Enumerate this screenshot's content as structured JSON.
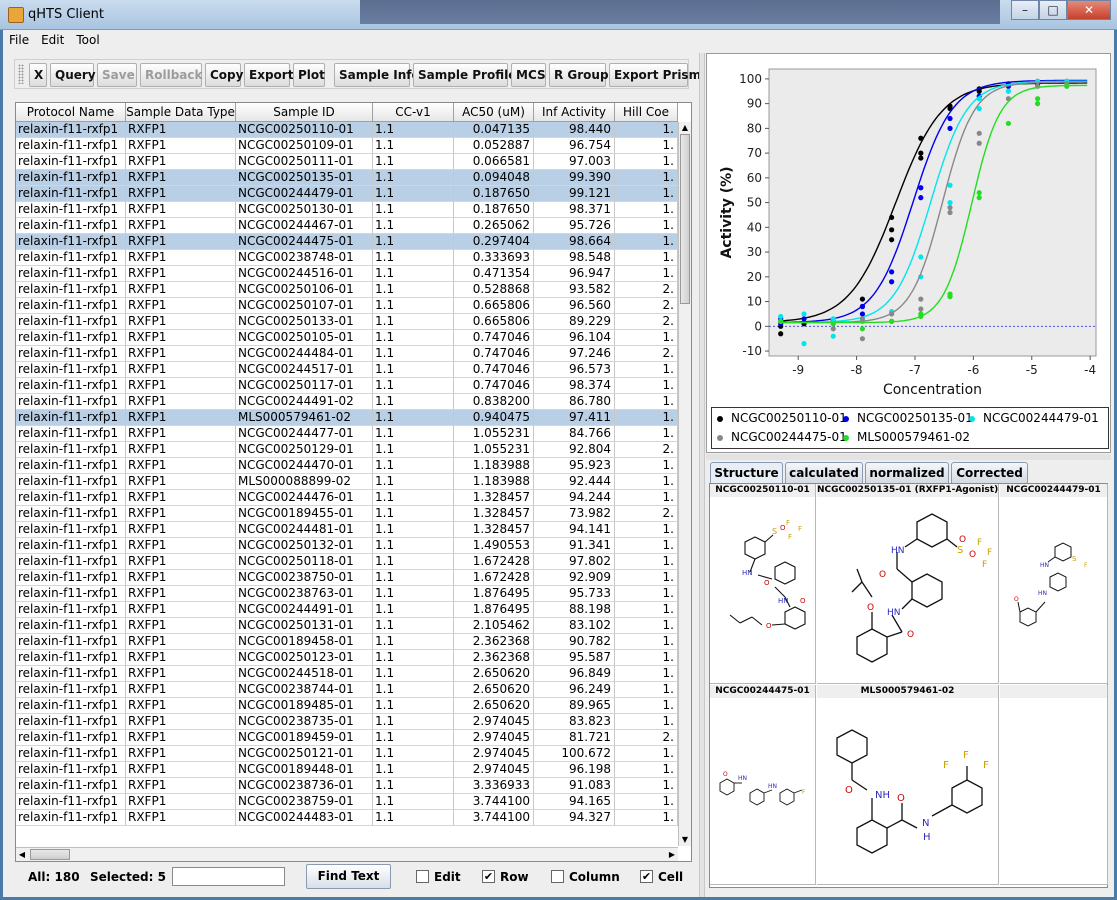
{
  "window": {
    "title": "qHTS Client"
  },
  "menu": [
    "File",
    "Edit",
    "Tool"
  ],
  "toolbar": {
    "buttons": [
      {
        "label": "X",
        "enabled": true
      },
      {
        "label": "Query",
        "enabled": true
      },
      {
        "label": "Save",
        "enabled": false
      },
      {
        "label": "Rollback",
        "enabled": false
      },
      {
        "label": "Copy",
        "enabled": true
      },
      {
        "label": "Export",
        "enabled": true
      },
      {
        "label": "Plot",
        "enabled": true
      },
      {
        "label": "Sample Info",
        "enabled": true
      },
      {
        "label": "Sample Profile",
        "enabled": true
      },
      {
        "label": "MCS",
        "enabled": true
      },
      {
        "label": "R Group",
        "enabled": true
      },
      {
        "label": "Export Prism",
        "enabled": true
      }
    ]
  },
  "table": {
    "columns": [
      "Protocol Name",
      "Sample Data Type",
      "Sample ID",
      "CC-v1",
      "AC50 (uM)",
      "Inf Activity",
      "Hill Coe"
    ],
    "rows": [
      {
        "protocol": "relaxin-f11-rxfp1",
        "type": "RXFP1",
        "id": "NCGC00250110-01",
        "cc": "1.1",
        "ac50": "0.047135",
        "inf": "98.440",
        "hill": "1.",
        "sel": true
      },
      {
        "protocol": "relaxin-f11-rxfp1",
        "type": "RXFP1",
        "id": "NCGC00250109-01",
        "cc": "1.1",
        "ac50": "0.052887",
        "inf": "96.754",
        "hill": "1.",
        "sel": false
      },
      {
        "protocol": "relaxin-f11-rxfp1",
        "type": "RXFP1",
        "id": "NCGC00250111-01",
        "cc": "1.1",
        "ac50": "0.066581",
        "inf": "97.003",
        "hill": "1.",
        "sel": false
      },
      {
        "protocol": "relaxin-f11-rxfp1",
        "type": "RXFP1",
        "id": "NCGC00250135-01",
        "cc": "1.1",
        "ac50": "0.094048",
        "inf": "99.390",
        "hill": "1.",
        "sel": true
      },
      {
        "protocol": "relaxin-f11-rxfp1",
        "type": "RXFP1",
        "id": "NCGC00244479-01",
        "cc": "1.1",
        "ac50": "0.187650",
        "inf": "99.121",
        "hill": "1.",
        "sel": true
      },
      {
        "protocol": "relaxin-f11-rxfp1",
        "type": "RXFP1",
        "id": "NCGC00250130-01",
        "cc": "1.1",
        "ac50": "0.187650",
        "inf": "98.371",
        "hill": "1.",
        "sel": false
      },
      {
        "protocol": "relaxin-f11-rxfp1",
        "type": "RXFP1",
        "id": "NCGC00244467-01",
        "cc": "1.1",
        "ac50": "0.265062",
        "inf": "95.726",
        "hill": "1.",
        "sel": false
      },
      {
        "protocol": "relaxin-f11-rxfp1",
        "type": "RXFP1",
        "id": "NCGC00244475-01",
        "cc": "1.1",
        "ac50": "0.297404",
        "inf": "98.664",
        "hill": "1.",
        "sel": true
      },
      {
        "protocol": "relaxin-f11-rxfp1",
        "type": "RXFP1",
        "id": "NCGC00238748-01",
        "cc": "1.1",
        "ac50": "0.333693",
        "inf": "98.548",
        "hill": "1.",
        "sel": false
      },
      {
        "protocol": "relaxin-f11-rxfp1",
        "type": "RXFP1",
        "id": "NCGC00244516-01",
        "cc": "1.1",
        "ac50": "0.471354",
        "inf": "96.947",
        "hill": "1.",
        "sel": false
      },
      {
        "protocol": "relaxin-f11-rxfp1",
        "type": "RXFP1",
        "id": "NCGC00250106-01",
        "cc": "1.1",
        "ac50": "0.528868",
        "inf": "93.582",
        "hill": "2.",
        "sel": false
      },
      {
        "protocol": "relaxin-f11-rxfp1",
        "type": "RXFP1",
        "id": "NCGC00250107-01",
        "cc": "1.1",
        "ac50": "0.665806",
        "inf": "96.560",
        "hill": "2.",
        "sel": false
      },
      {
        "protocol": "relaxin-f11-rxfp1",
        "type": "RXFP1",
        "id": "NCGC00250133-01",
        "cc": "1.1",
        "ac50": "0.665806",
        "inf": "89.229",
        "hill": "2.",
        "sel": false
      },
      {
        "protocol": "relaxin-f11-rxfp1",
        "type": "RXFP1",
        "id": "NCGC00250105-01",
        "cc": "1.1",
        "ac50": "0.747046",
        "inf": "96.104",
        "hill": "1.",
        "sel": false
      },
      {
        "protocol": "relaxin-f11-rxfp1",
        "type": "RXFP1",
        "id": "NCGC00244484-01",
        "cc": "1.1",
        "ac50": "0.747046",
        "inf": "97.246",
        "hill": "2.",
        "sel": false
      },
      {
        "protocol": "relaxin-f11-rxfp1",
        "type": "RXFP1",
        "id": "NCGC00244517-01",
        "cc": "1.1",
        "ac50": "0.747046",
        "inf": "96.573",
        "hill": "1.",
        "sel": false
      },
      {
        "protocol": "relaxin-f11-rxfp1",
        "type": "RXFP1",
        "id": "NCGC00250117-01",
        "cc": "1.1",
        "ac50": "0.747046",
        "inf": "98.374",
        "hill": "1.",
        "sel": false
      },
      {
        "protocol": "relaxin-f11-rxfp1",
        "type": "RXFP1",
        "id": "NCGC00244491-02",
        "cc": "1.1",
        "ac50": "0.838200",
        "inf": "86.780",
        "hill": "1.",
        "sel": false
      },
      {
        "protocol": "relaxin-f11-rxfp1",
        "type": "RXFP1",
        "id": "MLS000579461-02",
        "cc": "1.1",
        "ac50": "0.940475",
        "inf": "97.411",
        "hill": "1.",
        "sel": true
      },
      {
        "protocol": "relaxin-f11-rxfp1",
        "type": "RXFP1",
        "id": "NCGC00244477-01",
        "cc": "1.1",
        "ac50": "1.055231",
        "inf": "84.766",
        "hill": "1.",
        "sel": false
      },
      {
        "protocol": "relaxin-f11-rxfp1",
        "type": "RXFP1",
        "id": "NCGC00250129-01",
        "cc": "1.1",
        "ac50": "1.055231",
        "inf": "92.804",
        "hill": "2.",
        "sel": false
      },
      {
        "protocol": "relaxin-f11-rxfp1",
        "type": "RXFP1",
        "id": "NCGC00244470-01",
        "cc": "1.1",
        "ac50": "1.183988",
        "inf": "95.923",
        "hill": "1.",
        "sel": false
      },
      {
        "protocol": "relaxin-f11-rxfp1",
        "type": "RXFP1",
        "id": "MLS000088899-02",
        "cc": "1.1",
        "ac50": "1.183988",
        "inf": "92.444",
        "hill": "1.",
        "sel": false
      },
      {
        "protocol": "relaxin-f11-rxfp1",
        "type": "RXFP1",
        "id": "NCGC00244476-01",
        "cc": "1.1",
        "ac50": "1.328457",
        "inf": "94.244",
        "hill": "1.",
        "sel": false
      },
      {
        "protocol": "relaxin-f11-rxfp1",
        "type": "RXFP1",
        "id": "NCGC00189455-01",
        "cc": "1.1",
        "ac50": "1.328457",
        "inf": "73.982",
        "hill": "2.",
        "sel": false
      },
      {
        "protocol": "relaxin-f11-rxfp1",
        "type": "RXFP1",
        "id": "NCGC00244481-01",
        "cc": "1.1",
        "ac50": "1.328457",
        "inf": "94.141",
        "hill": "1.",
        "sel": false
      },
      {
        "protocol": "relaxin-f11-rxfp1",
        "type": "RXFP1",
        "id": "NCGC00250132-01",
        "cc": "1.1",
        "ac50": "1.490553",
        "inf": "91.341",
        "hill": "1.",
        "sel": false
      },
      {
        "protocol": "relaxin-f11-rxfp1",
        "type": "RXFP1",
        "id": "NCGC00250118-01",
        "cc": "1.1",
        "ac50": "1.672428",
        "inf": "97.802",
        "hill": "1.",
        "sel": false
      },
      {
        "protocol": "relaxin-f11-rxfp1",
        "type": "RXFP1",
        "id": "NCGC00238750-01",
        "cc": "1.1",
        "ac50": "1.672428",
        "inf": "92.909",
        "hill": "1.",
        "sel": false
      },
      {
        "protocol": "relaxin-f11-rxfp1",
        "type": "RXFP1",
        "id": "NCGC00238763-01",
        "cc": "1.1",
        "ac50": "1.876495",
        "inf": "95.733",
        "hill": "1.",
        "sel": false
      },
      {
        "protocol": "relaxin-f11-rxfp1",
        "type": "RXFP1",
        "id": "NCGC00244491-01",
        "cc": "1.1",
        "ac50": "1.876495",
        "inf": "88.198",
        "hill": "1.",
        "sel": false
      },
      {
        "protocol": "relaxin-f11-rxfp1",
        "type": "RXFP1",
        "id": "NCGC00250131-01",
        "cc": "1.1",
        "ac50": "2.105462",
        "inf": "83.102",
        "hill": "1.",
        "sel": false
      },
      {
        "protocol": "relaxin-f11-rxfp1",
        "type": "RXFP1",
        "id": "NCGC00189458-01",
        "cc": "1.1",
        "ac50": "2.362368",
        "inf": "90.782",
        "hill": "1.",
        "sel": false
      },
      {
        "protocol": "relaxin-f11-rxfp1",
        "type": "RXFP1",
        "id": "NCGC00250123-01",
        "cc": "1.1",
        "ac50": "2.362368",
        "inf": "95.587",
        "hill": "1.",
        "sel": false
      },
      {
        "protocol": "relaxin-f11-rxfp1",
        "type": "RXFP1",
        "id": "NCGC00244518-01",
        "cc": "1.1",
        "ac50": "2.650620",
        "inf": "96.849",
        "hill": "1.",
        "sel": false
      },
      {
        "protocol": "relaxin-f11-rxfp1",
        "type": "RXFP1",
        "id": "NCGC00238744-01",
        "cc": "1.1",
        "ac50": "2.650620",
        "inf": "96.249",
        "hill": "1.",
        "sel": false
      },
      {
        "protocol": "relaxin-f11-rxfp1",
        "type": "RXFP1",
        "id": "NCGC00189485-01",
        "cc": "1.1",
        "ac50": "2.650620",
        "inf": "89.965",
        "hill": "1.",
        "sel": false
      },
      {
        "protocol": "relaxin-f11-rxfp1",
        "type": "RXFP1",
        "id": "NCGC00238735-01",
        "cc": "1.1",
        "ac50": "2.974045",
        "inf": "83.823",
        "hill": "1.",
        "sel": false
      },
      {
        "protocol": "relaxin-f11-rxfp1",
        "type": "RXFP1",
        "id": "NCGC00189459-01",
        "cc": "1.1",
        "ac50": "2.974045",
        "inf": "81.721",
        "hill": "2.",
        "sel": false
      },
      {
        "protocol": "relaxin-f11-rxfp1",
        "type": "RXFP1",
        "id": "NCGC00250121-01",
        "cc": "1.1",
        "ac50": "2.974045",
        "inf": "100.672",
        "hill": "1.",
        "sel": false
      },
      {
        "protocol": "relaxin-f11-rxfp1",
        "type": "RXFP1",
        "id": "NCGC00189448-01",
        "cc": "1.1",
        "ac50": "2.974045",
        "inf": "96.198",
        "hill": "1.",
        "sel": false
      },
      {
        "protocol": "relaxin-f11-rxfp1",
        "type": "RXFP1",
        "id": "NCGC00238736-01",
        "cc": "1.1",
        "ac50": "3.336933",
        "inf": "91.083",
        "hill": "1.",
        "sel": false
      },
      {
        "protocol": "relaxin-f11-rxfp1",
        "type": "RXFP1",
        "id": "NCGC00238759-01",
        "cc": "1.1",
        "ac50": "3.744100",
        "inf": "94.165",
        "hill": "1.",
        "sel": false
      },
      {
        "protocol": "relaxin-f11-rxfp1",
        "type": "RXFP1",
        "id": "NCGC00244483-01",
        "cc": "1.1",
        "ac50": "3.744100",
        "inf": "94.327",
        "hill": "1.",
        "sel": false
      }
    ]
  },
  "status": {
    "all": "All: 180",
    "selected": "Selected: 5",
    "find_value": "",
    "find_button": "Find Text",
    "checks": [
      {
        "label": "Edit",
        "checked": false
      },
      {
        "label": "Row",
        "checked": true
      },
      {
        "label": "Column",
        "checked": false
      },
      {
        "label": "Cell",
        "checked": true
      }
    ]
  },
  "chart_data": {
    "type": "scatter",
    "xlabel": "Concentration",
    "ylabel": "Activity (%)",
    "xlim": [
      -9.5,
      -3.9
    ],
    "ylim": [
      -12,
      104
    ],
    "xticks": [
      -9,
      -8,
      -7,
      -6,
      -5,
      -4
    ],
    "yticks": [
      -10,
      0,
      10,
      20,
      30,
      40,
      50,
      60,
      70,
      80,
      90,
      100
    ],
    "series": [
      {
        "name": "NCGC00250110-01",
        "color": "#000000",
        "bottom": 1.5,
        "top": 98.4,
        "logac50": -7.33,
        "hill": 1.1,
        "points": [
          [
            -9.3,
            -3
          ],
          [
            -9.3,
            0
          ],
          [
            -8.9,
            1
          ],
          [
            -8.4,
            2
          ],
          [
            -7.9,
            8
          ],
          [
            -7.9,
            11
          ],
          [
            -7.4,
            35
          ],
          [
            -7.4,
            39
          ],
          [
            -7.4,
            44
          ],
          [
            -6.9,
            70
          ],
          [
            -6.9,
            68
          ],
          [
            -6.9,
            76
          ],
          [
            -6.4,
            88
          ],
          [
            -6.4,
            89
          ],
          [
            -5.9,
            95
          ],
          [
            -5.9,
            96
          ],
          [
            -5.4,
            98
          ],
          [
            -4.9,
            99
          ]
        ]
      },
      {
        "name": "NCGC00250135-01",
        "color": "#0000ee",
        "bottom": 1.5,
        "top": 99.4,
        "logac50": -7.03,
        "hill": 1.3,
        "points": [
          [
            -9.3,
            3
          ],
          [
            -9.3,
            1
          ],
          [
            -8.9,
            3
          ],
          [
            -8.4,
            2
          ],
          [
            -7.9,
            5
          ],
          [
            -7.9,
            8
          ],
          [
            -7.4,
            18
          ],
          [
            -7.4,
            22
          ],
          [
            -6.9,
            52
          ],
          [
            -6.9,
            56
          ],
          [
            -6.4,
            80
          ],
          [
            -6.4,
            84
          ],
          [
            -5.9,
            93
          ],
          [
            -5.4,
            97
          ],
          [
            -4.9,
            98
          ],
          [
            -4.4,
            99
          ]
        ]
      },
      {
        "name": "NCGC00244479-01",
        "color": "#00e5ee",
        "bottom": 1.5,
        "top": 99.1,
        "logac50": -6.73,
        "hill": 1.4,
        "points": [
          [
            -9.3,
            4
          ],
          [
            -8.9,
            5
          ],
          [
            -8.9,
            -7
          ],
          [
            -8.4,
            -4
          ],
          [
            -8.4,
            3
          ],
          [
            -7.9,
            2
          ],
          [
            -7.4,
            6
          ],
          [
            -6.9,
            20
          ],
          [
            -6.9,
            28
          ],
          [
            -6.4,
            50
          ],
          [
            -6.4,
            57
          ],
          [
            -5.9,
            88
          ],
          [
            -5.9,
            92
          ],
          [
            -5.4,
            95
          ],
          [
            -4.9,
            99
          ],
          [
            -4.4,
            99
          ]
        ]
      },
      {
        "name": "NCGC00244475-01",
        "color": "#888888",
        "bottom": 1.5,
        "top": 98.7,
        "logac50": -6.53,
        "hill": 1.6,
        "points": [
          [
            -9.3,
            2
          ],
          [
            -8.4,
            -1
          ],
          [
            -7.9,
            -5
          ],
          [
            -7.9,
            3
          ],
          [
            -7.4,
            2
          ],
          [
            -7.4,
            5
          ],
          [
            -6.9,
            7
          ],
          [
            -6.9,
            11
          ],
          [
            -6.4,
            46
          ],
          [
            -6.4,
            48
          ],
          [
            -5.9,
            74
          ],
          [
            -5.9,
            78
          ],
          [
            -5.4,
            92
          ],
          [
            -4.9,
            97
          ],
          [
            -4.4,
            98
          ]
        ]
      },
      {
        "name": "MLS000579461-02",
        "color": "#22dd22",
        "bottom": 1.5,
        "top": 97.4,
        "logac50": -6.03,
        "hill": 1.8,
        "points": [
          [
            -9.3,
            2
          ],
          [
            -8.4,
            1
          ],
          [
            -7.9,
            -1
          ],
          [
            -7.4,
            2
          ],
          [
            -6.9,
            4
          ],
          [
            -6.9,
            5
          ],
          [
            -6.4,
            12
          ],
          [
            -6.4,
            13
          ],
          [
            -5.9,
            52
          ],
          [
            -5.9,
            54
          ],
          [
            -5.4,
            82
          ],
          [
            -4.9,
            90
          ],
          [
            -4.9,
            92
          ],
          [
            -4.4,
            97
          ]
        ]
      }
    ]
  },
  "legend_items": [
    {
      "label": "NCGC00250110-01",
      "color": "#000000"
    },
    {
      "label": "NCGC00250135-01",
      "color": "#0000ee"
    },
    {
      "label": "NCGC00244479-01",
      "color": "#00e5ee"
    },
    {
      "label": "NCGC00244475-01",
      "color": "#888888"
    },
    {
      "label": "MLS000579461-02",
      "color": "#22dd22"
    }
  ],
  "structure_tabs": [
    "Structure",
    "calculated",
    "normalized",
    "Corrected"
  ],
  "structure_cells": [
    "NCGC00250110-01",
    "NCGC00250135-01 (RXFP1-Agonist)",
    "NCGC00244479-01",
    "NCGC00244475-01",
    "MLS000579461-02"
  ]
}
